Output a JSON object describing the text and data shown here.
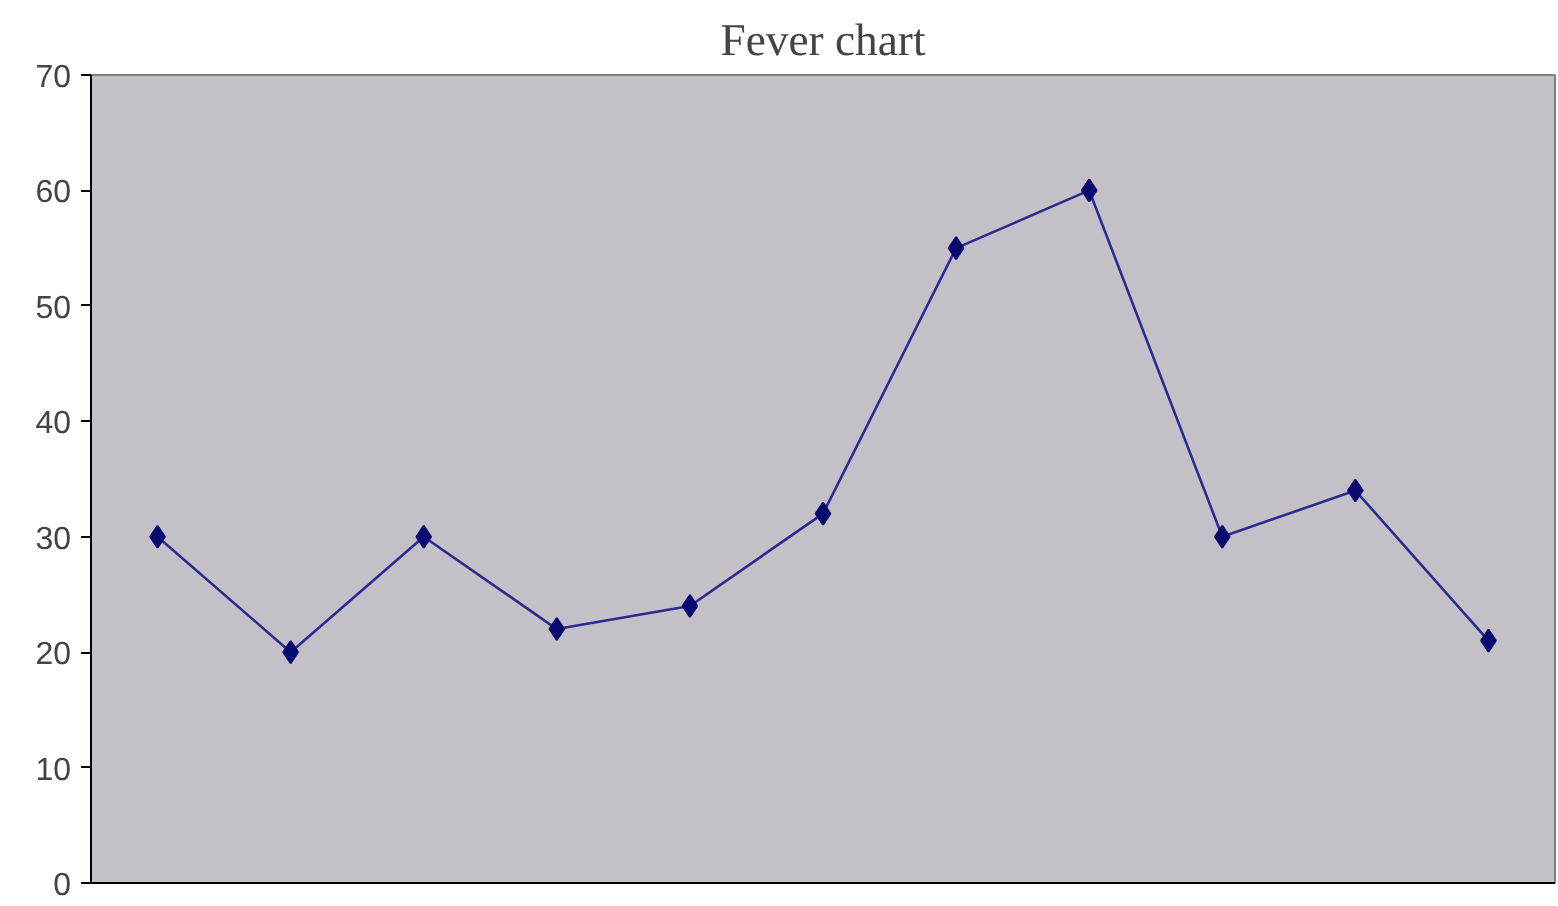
{
  "chart_data": {
    "type": "line",
    "title": "Fever chart",
    "categories": [
      null,
      null,
      null,
      null,
      null,
      null,
      null,
      null,
      null,
      null,
      null
    ],
    "series": [
      {
        "color": "#2b2b8f",
        "values": [
          30,
          20,
          30,
          22,
          24,
          32,
          55,
          60,
          30,
          34,
          21
        ]
      }
    ],
    "ylim": [
      0,
      70
    ],
    "yticks": [
      0,
      10,
      20,
      30,
      40,
      50,
      60,
      70
    ],
    "grid": false,
    "marker": "diamond",
    "line_style": "solid",
    "tick_labels": "y"
  }
}
